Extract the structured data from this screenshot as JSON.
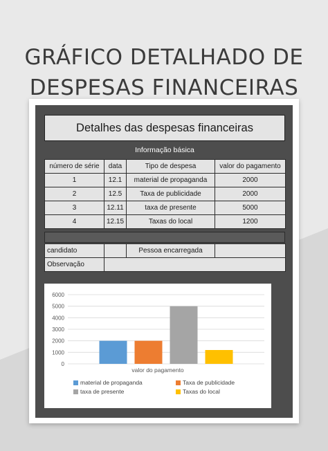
{
  "page": {
    "title_line1": "GRÁFICO DETALHADO DE",
    "title_line2": "DESPESAS FINANCEIRAS"
  },
  "document": {
    "title": "Detalhes das despesas financeiras",
    "section_label": "Informação básica",
    "columns": [
      "número de série",
      "data",
      "Tipo de despesa",
      "valor do pagamento"
    ],
    "rows": [
      {
        "serial": "1",
        "date": "12.1",
        "type": "material de propaganda",
        "amount": "2000"
      },
      {
        "serial": "2",
        "date": "12.5",
        "type": "Taxa de publicidade",
        "amount": "2000"
      },
      {
        "serial": "3",
        "date": "12.11",
        "type": "taxa de presente",
        "amount": "5000"
      },
      {
        "serial": "4",
        "date": "12.15",
        "type": "Taxas do local",
        "amount": "1200"
      }
    ],
    "info": {
      "candidate_label": "candidato",
      "person_label": "Pessoa encarregada",
      "observation_label": "Observação"
    }
  },
  "colors": {
    "background": "#e9e9e9",
    "frame": "#4d4d4d",
    "cell": "#e4e4e4"
  },
  "chart_data": {
    "type": "bar",
    "xlabel": "valor do pagamento",
    "ylim": [
      0,
      6000
    ],
    "yticks": [
      0,
      1000,
      2000,
      3000,
      4000,
      5000,
      6000
    ],
    "grid": true,
    "legend_position": "bottom",
    "series": [
      {
        "name": "material de propaganda",
        "value": 2000,
        "color": "#5b9bd5"
      },
      {
        "name": "Taxa de publicidade",
        "value": 2000,
        "color": "#ed7d31"
      },
      {
        "name": "taxa de presente",
        "value": 5000,
        "color": "#a5a5a5"
      },
      {
        "name": "Taxas do local",
        "value": 1200,
        "color": "#ffc000"
      }
    ]
  }
}
